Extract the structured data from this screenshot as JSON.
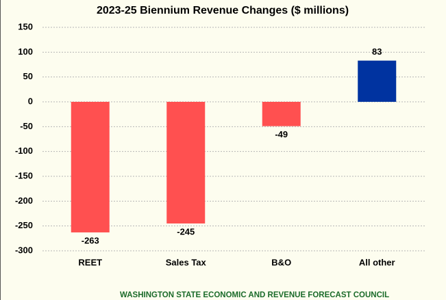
{
  "chart_data": {
    "type": "bar",
    "title": "2023-25 Biennium Revenue Changes ($ millions)",
    "categories": [
      "REET",
      "Sales Tax",
      "B&O",
      "All other"
    ],
    "values": [
      -263,
      -245,
      -49,
      83
    ],
    "colors": [
      "#ff5050",
      "#ff5050",
      "#ff5050",
      "#0033a0"
    ],
    "ylim": [
      -300,
      150
    ],
    "yticks": [
      -300,
      -250,
      -200,
      -150,
      -100,
      -50,
      0,
      50,
      100,
      150
    ],
    "grid": true,
    "footer": "WASHINGTON STATE ECONOMIC AND REVENUE FORECAST COUNCIL"
  }
}
